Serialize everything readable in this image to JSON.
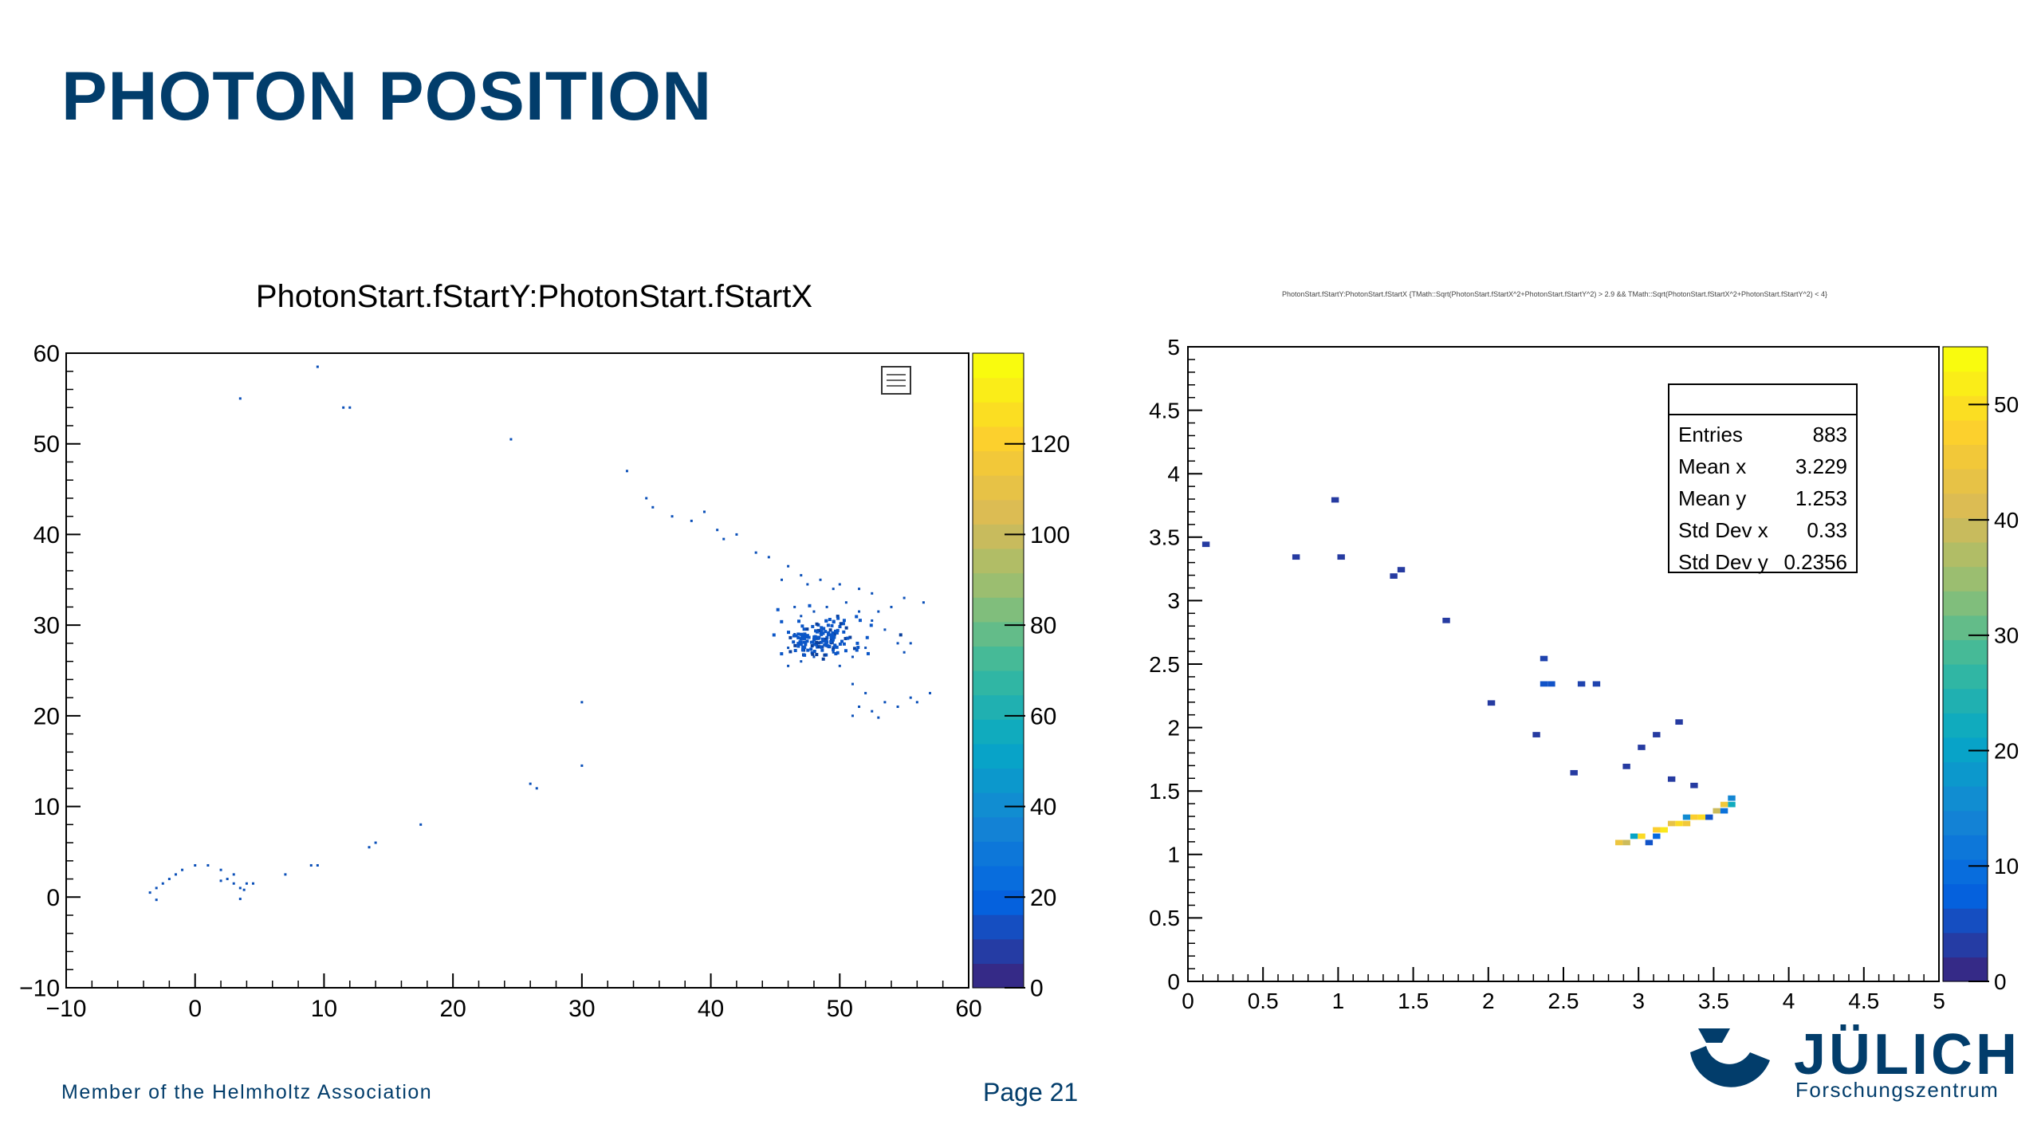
{
  "slide": {
    "title": "PHOTON POSITION",
    "footer_member": "Member of the Helmholtz Association",
    "footer_page": "Page 21",
    "logo_text": "JÜLICH",
    "logo_subtext": "Forschungszentrum",
    "brand_color": "#023d6b"
  },
  "chart_data": [
    {
      "type": "heatmap",
      "title": "PhotonStart.fStartY:PhotonStart.fStartX",
      "xlim": [
        -10,
        60
      ],
      "ylim": [
        -10,
        60
      ],
      "x_ticks": [
        -10,
        0,
        10,
        20,
        30,
        40,
        50,
        60
      ],
      "y_ticks": [
        -10,
        0,
        10,
        20,
        30,
        40,
        50,
        60
      ],
      "colorbar": {
        "range": [
          0,
          140
        ],
        "ticks": [
          0,
          20,
          40,
          60,
          80,
          100,
          120
        ]
      },
      "points": [
        [
          9.5,
          58.5
        ],
        [
          3.5,
          55.0
        ],
        [
          11.5,
          54.0
        ],
        [
          12.0,
          54.0
        ],
        [
          24.5,
          50.5
        ],
        [
          33.5,
          47.0
        ],
        [
          35.0,
          44.0
        ],
        [
          35.5,
          43.0
        ],
        [
          37.0,
          42.0
        ],
        [
          38.5,
          41.5
        ],
        [
          39.5,
          42.5
        ],
        [
          40.5,
          40.5
        ],
        [
          41.0,
          39.5
        ],
        [
          42.0,
          40.0
        ],
        [
          43.5,
          38.0
        ],
        [
          44.5,
          37.5
        ],
        [
          46.0,
          36.5
        ],
        [
          47.0,
          35.5
        ],
        [
          45.5,
          35.0
        ],
        [
          47.5,
          34.5
        ],
        [
          48.5,
          35.0
        ],
        [
          49.5,
          34.0
        ],
        [
          50.0,
          34.5
        ],
        [
          51.5,
          34.0
        ],
        [
          52.5,
          33.5
        ],
        [
          55.0,
          33.0
        ],
        [
          56.5,
          32.5
        ],
        [
          54.0,
          32.0
        ],
        [
          53.0,
          31.5
        ],
        [
          46.5,
          32.0
        ],
        [
          47.0,
          31.0
        ],
        [
          48.0,
          31.5
        ],
        [
          49.0,
          32.0
        ],
        [
          50.5,
          32.5
        ],
        [
          51.5,
          31.5
        ],
        [
          52.5,
          30.5
        ],
        [
          53.5,
          29.5
        ],
        [
          46.5,
          29.0
        ],
        [
          47.0,
          28.0
        ],
        [
          46.0,
          27.5
        ],
        [
          48.0,
          26.5
        ],
        [
          49.5,
          27.0
        ],
        [
          51.0,
          26.5
        ],
        [
          52.0,
          27.5
        ],
        [
          54.5,
          28.0
        ],
        [
          55.5,
          28.0
        ],
        [
          47.0,
          26.0
        ],
        [
          46.0,
          25.5
        ],
        [
          50.0,
          25.5
        ],
        [
          55.0,
          27.0
        ],
        [
          51.0,
          23.5
        ],
        [
          52.0,
          22.5
        ],
        [
          51.5,
          21.0
        ],
        [
          52.5,
          20.5
        ],
        [
          53.5,
          21.5
        ],
        [
          54.5,
          21.0
        ],
        [
          55.5,
          22.0
        ],
        [
          56.0,
          21.5
        ],
        [
          57.0,
          22.5
        ],
        [
          51.0,
          20.0
        ],
        [
          53.0,
          19.8
        ],
        [
          30.0,
          21.5
        ],
        [
          30.0,
          14.5
        ],
        [
          26.0,
          12.5
        ],
        [
          26.5,
          12.0
        ],
        [
          17.5,
          8.0
        ],
        [
          14.0,
          6.0
        ],
        [
          13.5,
          5.5
        ],
        [
          9.5,
          3.5
        ],
        [
          9.0,
          3.5
        ],
        [
          7.0,
          2.5
        ],
        [
          4.5,
          1.5
        ],
        [
          -3.5,
          0.5
        ],
        [
          -3.0,
          1.0
        ],
        [
          -2.5,
          1.5
        ],
        [
          -2.0,
          2.0
        ],
        [
          -1.5,
          2.5
        ],
        [
          -1.0,
          3.0
        ],
        [
          0.0,
          3.5
        ],
        [
          1.0,
          3.5
        ],
        [
          2.0,
          3.0
        ],
        [
          2.5,
          2.0
        ],
        [
          3.0,
          1.5
        ],
        [
          3.5,
          1.0
        ],
        [
          4.0,
          1.5
        ],
        [
          3.0,
          2.5
        ],
        [
          2.0,
          1.8
        ],
        [
          3.8,
          0.8
        ],
        [
          -3.0,
          -0.3
        ],
        [
          3.5,
          -0.2
        ]
      ],
      "cluster": {
        "center": [
          48.5,
          28.5
        ],
        "spread": [
          1.6,
          1.1
        ],
        "count": 170
      }
    },
    {
      "type": "heatmap",
      "title": "PhotonStart.fStartY:PhotonStart.fStartX {TMath::Sqrt(PhotonStart.fStartX^2+PhotonStart.fStartY^2) > 2.9 && TMath::Sqrt(PhotonStart.fStartX^2+PhotonStart.fStartY^2) < 4}",
      "xlim": [
        0,
        5
      ],
      "ylim": [
        0,
        5
      ],
      "x_ticks": [
        "0",
        "0.5",
        "1",
        "1.5",
        "2",
        "2.5",
        "3",
        "3.5",
        "4",
        "4.5",
        "5"
      ],
      "y_ticks": [
        "0",
        "0.5",
        "1",
        "1.5",
        "2",
        "2.5",
        "3",
        "3.5",
        "4",
        "4.5",
        "5"
      ],
      "colorbar": {
        "range": [
          0,
          55
        ],
        "ticks": [
          0,
          10,
          20,
          30,
          40,
          50
        ]
      },
      "stats": {
        "Entries": "883",
        "Mean x": "3.229",
        "Mean y": "1.253",
        "Std Dev x": "0.33",
        "Std Dev y": "0.2356"
      },
      "bins": [
        [
          0.12,
          3.44,
          2
        ],
        [
          0.72,
          3.34,
          2
        ],
        [
          0.98,
          3.79,
          2
        ],
        [
          1.02,
          3.34,
          2
        ],
        [
          1.37,
          3.19,
          2
        ],
        [
          1.42,
          3.24,
          2
        ],
        [
          1.72,
          2.84,
          2
        ],
        [
          2.02,
          2.19,
          2
        ],
        [
          2.37,
          2.54,
          3
        ],
        [
          2.37,
          2.34,
          5
        ],
        [
          2.42,
          2.34,
          5
        ],
        [
          2.62,
          2.34,
          3
        ],
        [
          2.72,
          2.34,
          3
        ],
        [
          2.32,
          1.94,
          2
        ],
        [
          2.57,
          1.64,
          2
        ],
        [
          2.92,
          1.69,
          2
        ],
        [
          3.02,
          1.84,
          2
        ],
        [
          3.12,
          1.94,
          2
        ],
        [
          3.27,
          2.04,
          2
        ],
        [
          3.22,
          1.59,
          2
        ],
        [
          3.37,
          1.54,
          2
        ],
        [
          2.87,
          1.09,
          45
        ],
        [
          2.92,
          1.09,
          40
        ],
        [
          2.97,
          1.14,
          20
        ],
        [
          3.02,
          1.14,
          50
        ],
        [
          3.07,
          1.09,
          5
        ],
        [
          3.12,
          1.14,
          8
        ],
        [
          3.12,
          1.19,
          48
        ],
        [
          3.17,
          1.19,
          52
        ],
        [
          3.22,
          1.24,
          44
        ],
        [
          3.27,
          1.24,
          50
        ],
        [
          3.32,
          1.29,
          15
        ],
        [
          3.32,
          1.24,
          46
        ],
        [
          3.37,
          1.29,
          48
        ],
        [
          3.42,
          1.29,
          50
        ],
        [
          3.47,
          1.29,
          5
        ],
        [
          3.52,
          1.34,
          40
        ],
        [
          3.57,
          1.34,
          10
        ],
        [
          3.62,
          1.39,
          22
        ],
        [
          3.62,
          1.44,
          14
        ],
        [
          3.57,
          1.39,
          46
        ]
      ]
    }
  ]
}
